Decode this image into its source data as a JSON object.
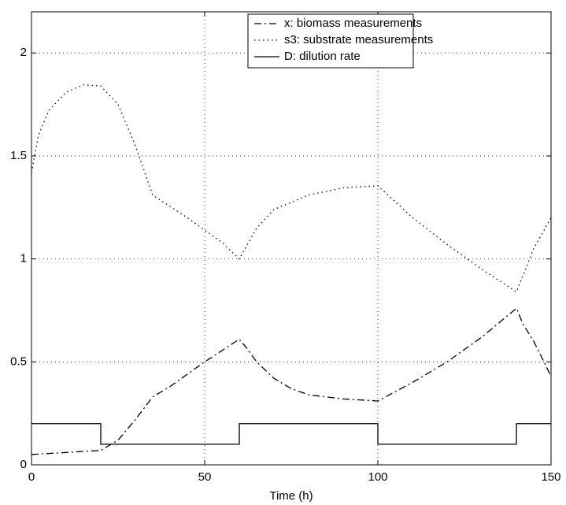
{
  "chart_data": {
    "type": "line",
    "xlabel": "Time (h)",
    "xlim": [
      0,
      150
    ],
    "xticks": [
      0,
      50,
      100,
      150
    ],
    "ylim": [
      0,
      2.2
    ],
    "yticks": [
      0,
      0.5,
      1,
      1.5,
      2
    ],
    "grid": true,
    "legend": "upper-right",
    "series": [
      {
        "name": "x: biomass measurements",
        "color": "#000000",
        "style": "dashdot",
        "x": [
          0,
          10,
          20,
          25,
          30,
          35,
          40,
          50,
          60,
          62,
          65,
          70,
          75,
          80,
          90,
          100,
          110,
          120,
          130,
          140,
          142,
          145,
          150
        ],
        "values": [
          0.05,
          0.06,
          0.07,
          0.12,
          0.22,
          0.33,
          0.38,
          0.5,
          0.61,
          0.57,
          0.5,
          0.42,
          0.37,
          0.34,
          0.32,
          0.31,
          0.4,
          0.5,
          0.62,
          0.76,
          0.68,
          0.6,
          0.43
        ]
      },
      {
        "name": "s3: substrate measurements",
        "color": "#000000",
        "style": "dotted",
        "x": [
          0,
          2,
          5,
          10,
          15,
          20,
          25,
          30,
          35,
          45,
          55,
          60,
          65,
          70,
          80,
          90,
          100,
          110,
          120,
          130,
          140,
          145,
          150
        ],
        "values": [
          1.42,
          1.6,
          1.72,
          1.81,
          1.845,
          1.84,
          1.75,
          1.55,
          1.31,
          1.2,
          1.08,
          1.0,
          1.15,
          1.24,
          1.31,
          1.345,
          1.355,
          1.2,
          1.07,
          0.95,
          0.84,
          1.05,
          1.2
        ]
      },
      {
        "name": "D: dilution rate",
        "color": "#000000",
        "style": "solid",
        "x": [
          0,
          20,
          20,
          60,
          60,
          100,
          100,
          140,
          140,
          150
        ],
        "values": [
          0.2,
          0.2,
          0.1,
          0.1,
          0.2,
          0.2,
          0.1,
          0.1,
          0.2,
          0.2
        ]
      }
    ]
  }
}
